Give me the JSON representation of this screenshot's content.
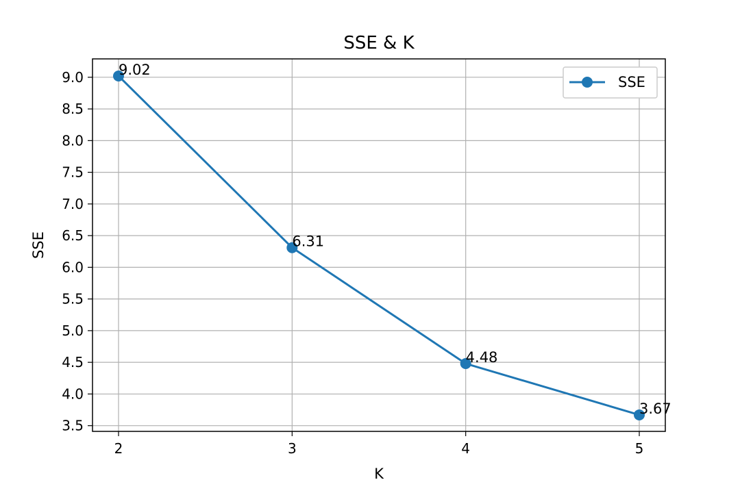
{
  "chart_data": {
    "type": "line",
    "title": "SSE & K",
    "xlabel": "K",
    "ylabel": "SSE",
    "x": [
      2,
      3,
      4,
      5
    ],
    "x_ticks": [
      "2",
      "3",
      "4",
      "5"
    ],
    "xlim": [
      1.85,
      5.15
    ],
    "y_ticks": [
      "3.5",
      "4.0",
      "4.5",
      "5.0",
      "5.5",
      "6.0",
      "6.5",
      "7.0",
      "7.5",
      "8.0",
      "8.5",
      "9.0"
    ],
    "ylim": [
      3.41,
      9.29
    ],
    "series": [
      {
        "name": "SSE",
        "values": [
          9.02,
          6.31,
          4.48,
          3.67
        ],
        "labels": [
          "9.02",
          "6.31",
          "4.48",
          "3.67"
        ],
        "color": "#1f77b4",
        "marker": "circle"
      }
    ],
    "grid": true,
    "legend": "top-right"
  }
}
